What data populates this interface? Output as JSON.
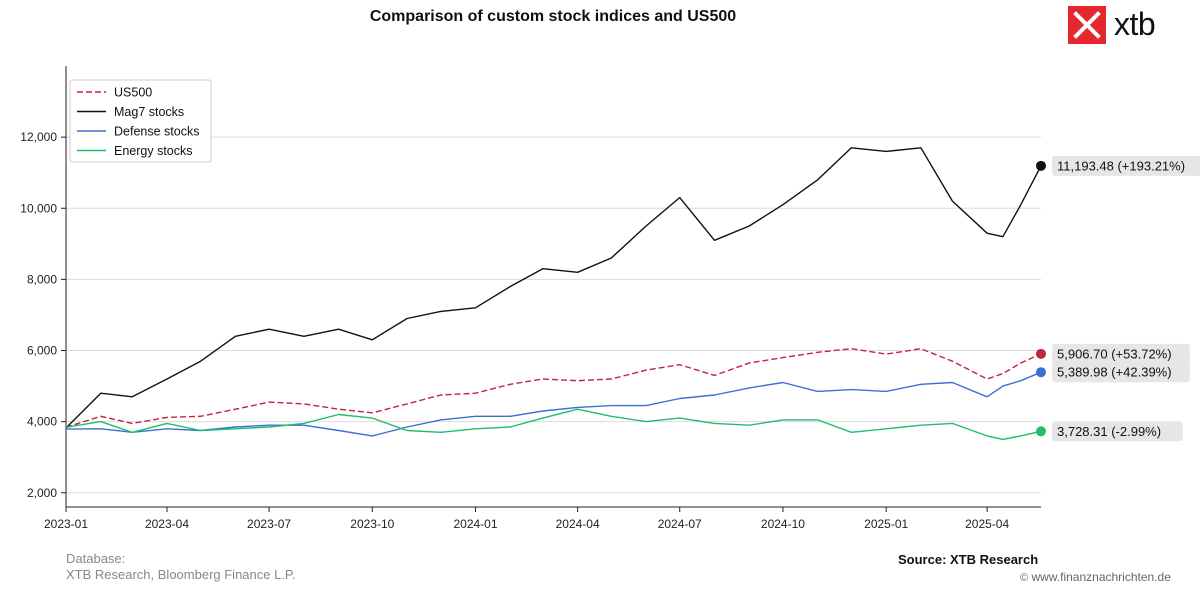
{
  "chart_data": {
    "type": "line",
    "title": "Comparison of custom stock indices and US500",
    "xlabel": "",
    "ylabel": "",
    "x_range": [
      "2023-01-01",
      "2025-05-19"
    ],
    "ylim": [
      1600,
      14000
    ],
    "y_ticks": [
      2000,
      4000,
      6000,
      8000,
      10000,
      12000
    ],
    "y_tick_labels": [
      "2,000",
      "4,000",
      "6,000",
      "8,000",
      "10,000",
      "12,000"
    ],
    "x_ticks": [
      "2023-01-01",
      "2023-04-01",
      "2023-07-01",
      "2023-10-01",
      "2024-01-01",
      "2024-04-01",
      "2024-07-01",
      "2024-10-01",
      "2025-01-01",
      "2025-04-01"
    ],
    "x_tick_labels": [
      "2023-01",
      "2023-04",
      "2023-07",
      "2023-10",
      "2024-01",
      "2024-04",
      "2024-07",
      "2024-10",
      "2025-01",
      "2025-04"
    ],
    "grid": "horizontal",
    "legend_position": "top-left",
    "series": [
      {
        "name": "US500",
        "color": "#c0253e",
        "dashed": true,
        "end_label": "5,906.70 (+53.72%)",
        "end_value": 5906.7,
        "points": [
          [
            "2023-01-01",
            3840
          ],
          [
            "2023-02-01",
            4150
          ],
          [
            "2023-03-01",
            3950
          ],
          [
            "2023-04-01",
            4120
          ],
          [
            "2023-05-01",
            4150
          ],
          [
            "2023-06-01",
            4350
          ],
          [
            "2023-07-01",
            4550
          ],
          [
            "2023-08-01",
            4500
          ],
          [
            "2023-09-01",
            4350
          ],
          [
            "2023-10-01",
            4250
          ],
          [
            "2023-11-01",
            4500
          ],
          [
            "2023-12-01",
            4750
          ],
          [
            "2024-01-01",
            4800
          ],
          [
            "2024-02-01",
            5050
          ],
          [
            "2024-03-01",
            5200
          ],
          [
            "2024-04-01",
            5150
          ],
          [
            "2024-05-01",
            5200
          ],
          [
            "2024-06-01",
            5450
          ],
          [
            "2024-07-01",
            5600
          ],
          [
            "2024-08-01",
            5300
          ],
          [
            "2024-09-01",
            5650
          ],
          [
            "2024-10-01",
            5800
          ],
          [
            "2024-11-01",
            5950
          ],
          [
            "2024-12-01",
            6050
          ],
          [
            "2025-01-01",
            5900
          ],
          [
            "2025-02-01",
            6050
          ],
          [
            "2025-03-01",
            5700
          ],
          [
            "2025-04-01",
            5200
          ],
          [
            "2025-04-15",
            5350
          ],
          [
            "2025-05-01",
            5650
          ],
          [
            "2025-05-19",
            5906.7
          ]
        ]
      },
      {
        "name": "Mag7 stocks",
        "color": "#111111",
        "dashed": false,
        "end_label": "11,193.48 (+193.21%)",
        "end_value": 11193.48,
        "points": [
          [
            "2023-01-01",
            3820
          ],
          [
            "2023-02-01",
            4800
          ],
          [
            "2023-03-01",
            4700
          ],
          [
            "2023-04-01",
            5200
          ],
          [
            "2023-05-01",
            5700
          ],
          [
            "2023-06-01",
            6400
          ],
          [
            "2023-07-01",
            6600
          ],
          [
            "2023-08-01",
            6400
          ],
          [
            "2023-09-01",
            6600
          ],
          [
            "2023-10-01",
            6300
          ],
          [
            "2023-11-01",
            6900
          ],
          [
            "2023-12-01",
            7100
          ],
          [
            "2024-01-01",
            7200
          ],
          [
            "2024-02-01",
            7800
          ],
          [
            "2024-03-01",
            8300
          ],
          [
            "2024-04-01",
            8200
          ],
          [
            "2024-05-01",
            8600
          ],
          [
            "2024-06-01",
            9500
          ],
          [
            "2024-07-01",
            10300
          ],
          [
            "2024-08-01",
            9100
          ],
          [
            "2024-09-01",
            9500
          ],
          [
            "2024-10-01",
            10100
          ],
          [
            "2024-11-01",
            10800
          ],
          [
            "2024-12-01",
            11700
          ],
          [
            "2025-01-01",
            11600
          ],
          [
            "2025-02-01",
            11700
          ],
          [
            "2025-03-01",
            10200
          ],
          [
            "2025-04-01",
            9300
          ],
          [
            "2025-04-15",
            9200
          ],
          [
            "2025-05-01",
            10100
          ],
          [
            "2025-05-19",
            11193.48
          ]
        ]
      },
      {
        "name": "Defense stocks",
        "color": "#3b6fd4",
        "dashed": false,
        "end_label": "5,389.98 (+42.39%)",
        "end_value": 5389.98,
        "points": [
          [
            "2023-01-01",
            3790
          ],
          [
            "2023-02-01",
            3800
          ],
          [
            "2023-03-01",
            3700
          ],
          [
            "2023-04-01",
            3800
          ],
          [
            "2023-05-01",
            3750
          ],
          [
            "2023-06-01",
            3850
          ],
          [
            "2023-07-01",
            3900
          ],
          [
            "2023-08-01",
            3900
          ],
          [
            "2023-09-01",
            3750
          ],
          [
            "2023-10-01",
            3600
          ],
          [
            "2023-11-01",
            3850
          ],
          [
            "2023-12-01",
            4050
          ],
          [
            "2024-01-01",
            4150
          ],
          [
            "2024-02-01",
            4150
          ],
          [
            "2024-03-01",
            4300
          ],
          [
            "2024-04-01",
            4400
          ],
          [
            "2024-05-01",
            4450
          ],
          [
            "2024-06-01",
            4450
          ],
          [
            "2024-07-01",
            4650
          ],
          [
            "2024-08-01",
            4750
          ],
          [
            "2024-09-01",
            4950
          ],
          [
            "2024-10-01",
            5100
          ],
          [
            "2024-11-01",
            4850
          ],
          [
            "2024-12-01",
            4900
          ],
          [
            "2025-01-01",
            4850
          ],
          [
            "2025-02-01",
            5050
          ],
          [
            "2025-03-01",
            5100
          ],
          [
            "2025-04-01",
            4700
          ],
          [
            "2025-04-15",
            5000
          ],
          [
            "2025-05-01",
            5150
          ],
          [
            "2025-05-19",
            5389.98
          ]
        ]
      },
      {
        "name": "Energy stocks",
        "color": "#1fbe6b",
        "dashed": false,
        "end_label": "3,728.31 (-2.99%)",
        "end_value": 3728.31,
        "points": [
          [
            "2023-01-01",
            3840
          ],
          [
            "2023-02-01",
            4000
          ],
          [
            "2023-03-01",
            3700
          ],
          [
            "2023-04-01",
            3950
          ],
          [
            "2023-05-01",
            3750
          ],
          [
            "2023-06-01",
            3800
          ],
          [
            "2023-07-01",
            3850
          ],
          [
            "2023-08-01",
            3950
          ],
          [
            "2023-09-01",
            4200
          ],
          [
            "2023-10-01",
            4100
          ],
          [
            "2023-11-01",
            3750
          ],
          [
            "2023-12-01",
            3700
          ],
          [
            "2024-01-01",
            3800
          ],
          [
            "2024-02-01",
            3850
          ],
          [
            "2024-03-01",
            4100
          ],
          [
            "2024-04-01",
            4350
          ],
          [
            "2024-05-01",
            4150
          ],
          [
            "2024-06-01",
            4000
          ],
          [
            "2024-07-01",
            4100
          ],
          [
            "2024-08-01",
            3950
          ],
          [
            "2024-09-01",
            3900
          ],
          [
            "2024-10-01",
            4050
          ],
          [
            "2024-11-01",
            4050
          ],
          [
            "2024-12-01",
            3700
          ],
          [
            "2025-01-01",
            3800
          ],
          [
            "2025-02-01",
            3900
          ],
          [
            "2025-03-01",
            3950
          ],
          [
            "2025-04-01",
            3600
          ],
          [
            "2025-04-15",
            3500
          ],
          [
            "2025-05-01",
            3600
          ],
          [
            "2025-05-19",
            3728.31
          ]
        ]
      }
    ]
  },
  "logo": {
    "text": "xtb",
    "color": "#e3272d"
  },
  "footer": {
    "database_label": "Database:",
    "database_value": "XTB Research, Bloomberg Finance L.P.",
    "source": "Source: XTB Research",
    "watermark": "www.finanznachrichten.de"
  }
}
